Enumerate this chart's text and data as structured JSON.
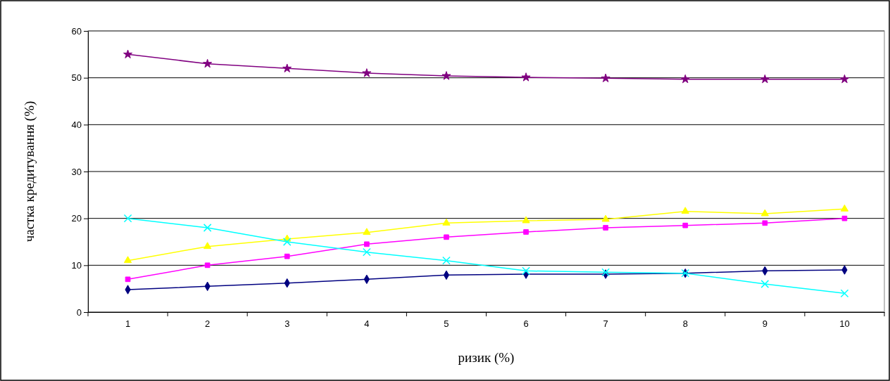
{
  "chart_data": {
    "type": "line",
    "xlabel": "ризик (%)",
    "ylabel": "частка кредитування (%)",
    "categories": [
      "1",
      "2",
      "3",
      "4",
      "5",
      "6",
      "7",
      "8",
      "9",
      "10"
    ],
    "ylim": [
      0,
      60
    ],
    "yticks": [
      0,
      10,
      20,
      30,
      40,
      50,
      60
    ],
    "grid": "y",
    "series": [
      {
        "color": "#000080",
        "marker": "diamond",
        "values": [
          4.8,
          5.5,
          6.2,
          7,
          7.9,
          8.1,
          8.1,
          8.3,
          8.8,
          9.0
        ]
      },
      {
        "color": "#ff00ff",
        "marker": "square",
        "values": [
          7,
          10,
          11.9,
          14.5,
          16,
          17.1,
          18,
          18.5,
          19,
          20
        ]
      },
      {
        "color": "#ffff00",
        "marker": "triangle",
        "values": [
          11,
          14,
          15.6,
          17,
          19,
          19.5,
          19.8,
          21.5,
          21,
          22
        ]
      },
      {
        "color": "#00ffff",
        "marker": "cross",
        "values": [
          20,
          18,
          15,
          12.8,
          11,
          8.8,
          8.5,
          8.3,
          6,
          4
        ]
      },
      {
        "color": "#800080",
        "marker": "star",
        "values": [
          55,
          53,
          52,
          51,
          50.4,
          50.1,
          49.9,
          49.7,
          49.7,
          49.7
        ]
      }
    ]
  }
}
